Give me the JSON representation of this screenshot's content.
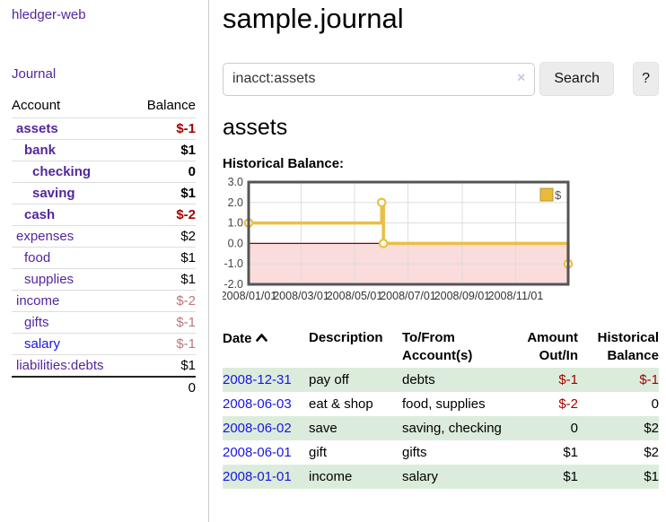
{
  "app": {
    "title": "hledger-web"
  },
  "sidebar": {
    "journal_link": "Journal",
    "accounts_header": {
      "account": "Account",
      "balance": "Balance"
    },
    "accounts": [
      {
        "name": "assets",
        "balance": "$-1",
        "level": 1,
        "bold": true,
        "balance_color": "negative",
        "link_color": "purple"
      },
      {
        "name": "bank",
        "balance": "$1",
        "level": 2,
        "bold": true,
        "balance_color": "normal",
        "link_color": "purple"
      },
      {
        "name": "checking",
        "balance": "0",
        "level": 3,
        "bold": true,
        "balance_color": "normal",
        "link_color": "purple"
      },
      {
        "name": "saving",
        "balance": "$1",
        "level": 3,
        "bold": true,
        "balance_color": "normal",
        "link_color": "purple"
      },
      {
        "name": "cash",
        "balance": "$-2",
        "level": 2,
        "bold": true,
        "balance_color": "negative",
        "link_color": "purple"
      },
      {
        "name": "expenses",
        "balance": "$2",
        "level": 1,
        "bold": false,
        "balance_color": "normal",
        "link_color": "purple"
      },
      {
        "name": "food",
        "balance": "$1",
        "level": 2,
        "bold": false,
        "balance_color": "normal",
        "link_color": "purple"
      },
      {
        "name": "supplies",
        "balance": "$1",
        "level": 2,
        "bold": false,
        "balance_color": "normal",
        "link_color": "purple"
      },
      {
        "name": "income",
        "balance": "$-2",
        "level": 1,
        "bold": false,
        "balance_color": "rosy",
        "link_color": "purple"
      },
      {
        "name": "gifts",
        "balance": "$-1",
        "level": 2,
        "bold": false,
        "balance_color": "rosy",
        "link_color": "purple"
      },
      {
        "name": "salary",
        "balance": "$-1",
        "level": 2,
        "bold": false,
        "balance_color": "rosy",
        "link_color": "blue"
      },
      {
        "name": "liabilities:debts",
        "balance": "$1",
        "level": 1,
        "bold": false,
        "balance_color": "normal",
        "link_color": "purple"
      }
    ],
    "total": "0"
  },
  "main": {
    "title": "sample.journal",
    "search": {
      "value": "inacct:assets",
      "clear_icon": "×",
      "button_label": "Search",
      "help_label": "?"
    },
    "account_heading": "assets",
    "chart_label": "Historical Balance:"
  },
  "chart_data": {
    "type": "line",
    "step": true,
    "title": "Historical Balance:",
    "legend": [
      {
        "label": "$",
        "color": "#e8bb3a"
      }
    ],
    "legend_position": "top-right",
    "ylim": [
      -2,
      3
    ],
    "y_ticks": [
      "3.0",
      "2.0",
      "1.0",
      "0.0",
      "-1.0",
      "-2.0"
    ],
    "y_tick_values": [
      3,
      2,
      1,
      0,
      -1,
      -2
    ],
    "x_range": [
      "2008-01-01",
      "2008-12-31"
    ],
    "x_ticks": [
      "2008/01/01",
      "2008/03/01",
      "2008/05/01",
      "2008/07/01",
      "2008/09/01",
      "2008/11/01"
    ],
    "x_tick_dates": [
      "2008-01-01",
      "2008-03-01",
      "2008-05-01",
      "2008-07-01",
      "2008-09-01",
      "2008-11-01"
    ],
    "grid": true,
    "negative_region_shaded": true,
    "points": [
      {
        "date": "2008-01-01",
        "value": 1
      },
      {
        "date": "2008-06-01",
        "value": 2
      },
      {
        "date": "2008-06-03",
        "value": 0
      },
      {
        "date": "2008-12-31",
        "value": -1
      }
    ]
  },
  "transactions": {
    "headers": {
      "date": "Date",
      "description": "Description",
      "accounts": "To/From Account(s)",
      "amount": "Amount Out/In",
      "balance": "Historical Balance"
    },
    "rows": [
      {
        "date": "2008-12-31",
        "description": "pay off",
        "accounts": "debts",
        "amount": "$-1",
        "balance": "$-1",
        "amount_neg": true,
        "balance_neg": true
      },
      {
        "date": "2008-06-03",
        "description": "eat & shop",
        "accounts": "food, supplies",
        "amount": "$-2",
        "balance": "0",
        "amount_neg": true,
        "balance_neg": false
      },
      {
        "date": "2008-06-02",
        "description": "save",
        "accounts": "saving, checking",
        "amount": "0",
        "balance": "$2",
        "amount_neg": false,
        "balance_neg": false
      },
      {
        "date": "2008-06-01",
        "description": "gift",
        "accounts": "gifts",
        "amount": "$1",
        "balance": "$2",
        "amount_neg": false,
        "balance_neg": false
      },
      {
        "date": "2008-01-01",
        "description": "income",
        "accounts": "salary",
        "amount": "$1",
        "balance": "$1",
        "amount_neg": false,
        "balance_neg": false
      }
    ]
  },
  "colors": {
    "link_purple": "#53279d",
    "link_blue": "#1a16e0",
    "negative": "#a40000",
    "rosy_negative": "#bd7878",
    "table_stripe_green": "#dcecdc",
    "chart_line_gold": "#e9c045",
    "legend_gold_fill": "#e8bb3a",
    "negative_region_pink": "#fadcdc",
    "zero_line_dark_red": "#8b0000",
    "chart_border_gray": "#555555",
    "grid_gray": "#dddddd"
  }
}
